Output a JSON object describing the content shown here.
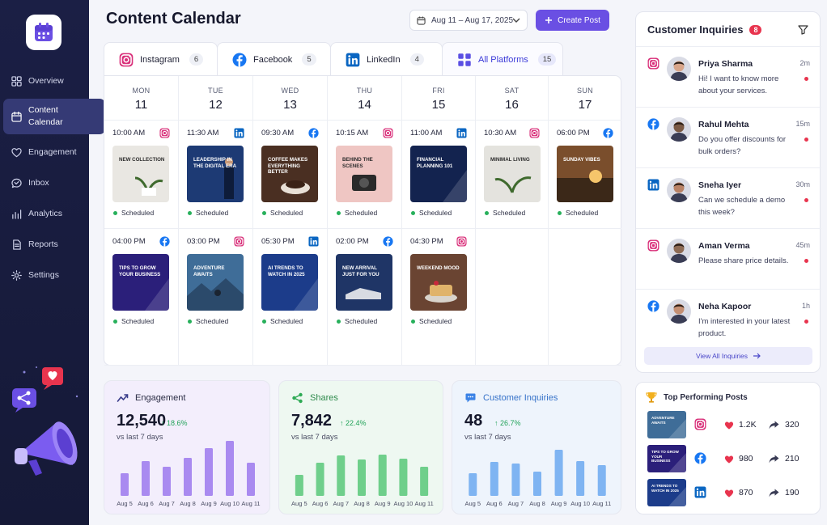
{
  "nav": {
    "items": [
      {
        "label": "Overview",
        "icon": "grid-icon"
      },
      {
        "label": "Content\nCalendar",
        "icon": "calendar-icon",
        "active": true
      },
      {
        "label": "Engagement",
        "icon": "heart-icon"
      },
      {
        "label": "Inbox",
        "icon": "chat-icon"
      },
      {
        "label": "Analytics",
        "icon": "bar-chart-icon"
      },
      {
        "label": "Reports",
        "icon": "document-icon"
      },
      {
        "label": "Settings",
        "icon": "gear-icon"
      }
    ]
  },
  "header": {
    "title": "Content Calendar",
    "date_range": "Aug 11 – Aug 17, 2025",
    "create_label": "Create Post"
  },
  "tabs": [
    {
      "label": "Instagram",
      "count": "6",
      "platform": "instagram"
    },
    {
      "label": "Facebook",
      "count": "5",
      "platform": "facebook"
    },
    {
      "label": "LinkedIn",
      "count": "4",
      "platform": "linkedin"
    },
    {
      "label": "All Platforms",
      "count": "15",
      "platform": "all",
      "selected": true
    }
  ],
  "days": [
    {
      "name": "MON",
      "date": "11"
    },
    {
      "name": "TUE",
      "date": "12"
    },
    {
      "name": "WED",
      "date": "13"
    },
    {
      "name": "THU",
      "date": "14"
    },
    {
      "name": "FRI",
      "date": "15"
    },
    {
      "name": "SAT",
      "date": "16"
    },
    {
      "name": "SUN",
      "date": "17"
    }
  ],
  "posts_row1": [
    {
      "time": "10:00 AM",
      "platform": "instagram",
      "text": "New Collection",
      "status": "Scheduled",
      "bg": "#e9e7e2",
      "dark": true
    },
    {
      "time": "11:30 AM",
      "platform": "linkedin",
      "text": "Leadership in the Digital Era",
      "status": "Scheduled",
      "bg": "#1d3a74"
    },
    {
      "time": "09:30 AM",
      "platform": "facebook",
      "text": "Coffee makes everything better",
      "status": "Scheduled",
      "bg": "#4a2f22"
    },
    {
      "time": "10:15 AM",
      "platform": "instagram",
      "text": "Behind the scenes",
      "status": "Scheduled",
      "bg": "#efc6c3",
      "dark": true
    },
    {
      "time": "11:00 AM",
      "platform": "linkedin",
      "text": "Financial Planning 101",
      "status": "Scheduled",
      "bg": "#13234f"
    },
    {
      "time": "10:30 AM",
      "platform": "instagram",
      "text": "Minimal Living",
      "status": "Scheduled",
      "bg": "#e4e3de",
      "dark": true
    },
    {
      "time": "06:00 PM",
      "platform": "facebook",
      "text": "Sunday Vibes",
      "status": "Scheduled",
      "bg": "#7a4e2c"
    }
  ],
  "posts_row2": [
    {
      "time": "04:00 PM",
      "platform": "facebook",
      "text": "Tips to grow your business",
      "status": "Scheduled",
      "bg": "#2b1f7a"
    },
    {
      "time": "03:00 PM",
      "platform": "instagram",
      "text": "Adventure awaits",
      "status": "Scheduled",
      "bg": "#3f6d98"
    },
    {
      "time": "05:30 PM",
      "platform": "linkedin",
      "text": "AI Trends to watch in 2025",
      "status": "Scheduled",
      "bg": "#1c3c8a"
    },
    {
      "time": "02:00 PM",
      "platform": "facebook",
      "text": "New Arrival just for you",
      "status": "Scheduled",
      "bg": "#1f3566"
    },
    {
      "time": "04:30 PM",
      "platform": "instagram",
      "text": "Weekend Mood",
      "status": "Scheduled",
      "bg": "#6a4432"
    }
  ],
  "metrics": [
    {
      "name": "Engagement",
      "value": "12,540",
      "change": "18.6%",
      "sub": "vs last 7 days",
      "color": "#a98af0",
      "bg": "#f3eefc",
      "icon": "trend-icon"
    },
    {
      "name": "Shares",
      "value": "7,842",
      "change": "22.4%",
      "sub": "vs last 7 days",
      "color": "#6fcf8b",
      "bg": "#eef8f1",
      "icon": "share-icon"
    },
    {
      "name": "Customer Inquiries",
      "value": "48",
      "change": "26.7%",
      "sub": "vs last 7 days",
      "color": "#7fb4f2",
      "bg": "#eef4fc",
      "icon": "chat-bubble-icon"
    }
  ],
  "chart_data": [
    {
      "type": "bar",
      "title": "Engagement",
      "categories": [
        "Aug 5",
        "Aug 6",
        "Aug 7",
        "Aug 8",
        "Aug 9",
        "Aug 10",
        "Aug 11"
      ],
      "values": [
        28,
        43,
        36,
        47,
        59,
        68,
        41
      ]
    },
    {
      "type": "bar",
      "title": "Shares",
      "categories": [
        "Aug 5",
        "Aug 6",
        "Aug 7",
        "Aug 8",
        "Aug 9",
        "Aug 10",
        "Aug 11"
      ],
      "values": [
        26,
        41,
        50,
        45,
        51,
        46,
        36
      ]
    },
    {
      "type": "bar",
      "title": "Customer Inquiries",
      "categories": [
        "Aug 5",
        "Aug 6",
        "Aug 7",
        "Aug 8",
        "Aug 9",
        "Aug 10",
        "Aug 11"
      ],
      "values": [
        28,
        42,
        40,
        30,
        57,
        43,
        38
      ]
    }
  ],
  "inquiries": {
    "title": "Customer Inquiries",
    "count": "8",
    "view_all": "View All Inquiries",
    "items": [
      {
        "name": "Priya Sharma",
        "message": "Hi! I want to know more about your services.",
        "time": "2m",
        "platform": "instagram",
        "avatar": "#d8a58a"
      },
      {
        "name": "Rahul Mehta",
        "message": "Do you offer discounts for bulk orders?",
        "time": "15m",
        "platform": "facebook",
        "avatar": "#7b5a45"
      },
      {
        "name": "Sneha Iyer",
        "message": "Can we schedule a demo this week?",
        "time": "30m",
        "platform": "linkedin",
        "avatar": "#b98266"
      },
      {
        "name": "Aman Verma",
        "message": "Please share price details.",
        "time": "45m",
        "platform": "instagram",
        "avatar": "#8e6b55"
      },
      {
        "name": "Neha Kapoor",
        "message": "I'm interested in your latest product.",
        "time": "1h",
        "platform": "facebook",
        "avatar": "#c48f73"
      }
    ]
  },
  "top_posts": {
    "title": "Top Performing Posts",
    "items": [
      {
        "text": "Adventure awaits",
        "platform": "instagram",
        "likes": "1.2K",
        "shares": "320",
        "bg": "#3f6d98"
      },
      {
        "text": "Tips to grow your business",
        "platform": "facebook",
        "likes": "980",
        "shares": "210",
        "bg": "#2b1f7a"
      },
      {
        "text": "AI Trends to watch in 2025",
        "platform": "linkedin",
        "likes": "870",
        "shares": "190",
        "bg": "#1c3c8a"
      }
    ]
  }
}
